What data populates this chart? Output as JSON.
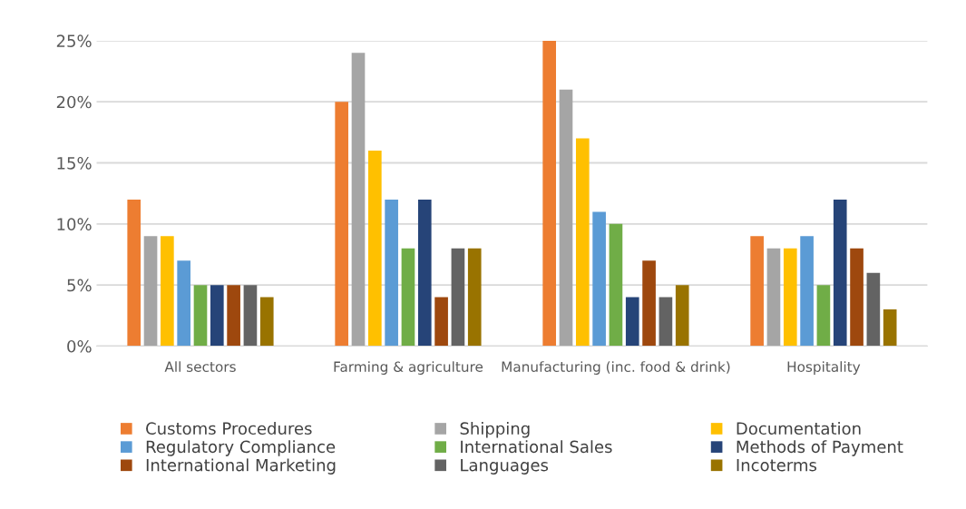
{
  "chart_data": {
    "type": "bar",
    "categories": [
      "All sectors",
      "Farming & agriculture",
      "Manufacturing (inc. food & drink)",
      "Hospitality"
    ],
    "series": [
      {
        "name": "Customs Procedures",
        "color": "#ed7d31",
        "values": [
          12,
          20,
          25,
          9
        ]
      },
      {
        "name": "Shipping",
        "color": "#a5a5a5",
        "values": [
          9,
          24,
          21,
          8
        ]
      },
      {
        "name": "Documentation",
        "color": "#ffc000",
        "values": [
          9,
          16,
          17,
          8
        ]
      },
      {
        "name": "Regulatory Compliance",
        "color": "#5b9bd5",
        "values": [
          7,
          12,
          11,
          9
        ]
      },
      {
        "name": "International Sales",
        "color": "#70ad47",
        "values": [
          5,
          8,
          10,
          5
        ]
      },
      {
        "name": "Methods of Payment",
        "color": "#264478",
        "values": [
          5,
          12,
          4,
          12
        ]
      },
      {
        "name": "International Marketing",
        "color": "#9e480e",
        "values": [
          5,
          4,
          7,
          8
        ]
      },
      {
        "name": "Languages",
        "color": "#636363",
        "values": [
          5,
          8,
          4,
          6
        ]
      },
      {
        "name": "Incoterms",
        "color": "#997300",
        "values": [
          4,
          8,
          5,
          3
        ]
      }
    ],
    "ylim": [
      0,
      25
    ],
    "yticks": [
      {
        "value": 0,
        "label": "0%"
      },
      {
        "value": 5,
        "label": "5%"
      },
      {
        "value": 10,
        "label": "10%"
      },
      {
        "value": 15,
        "label": "15%"
      },
      {
        "value": 20,
        "label": "20%"
      },
      {
        "value": 25,
        "label": "25%"
      }
    ],
    "grid": "y",
    "legend": "bottom"
  }
}
